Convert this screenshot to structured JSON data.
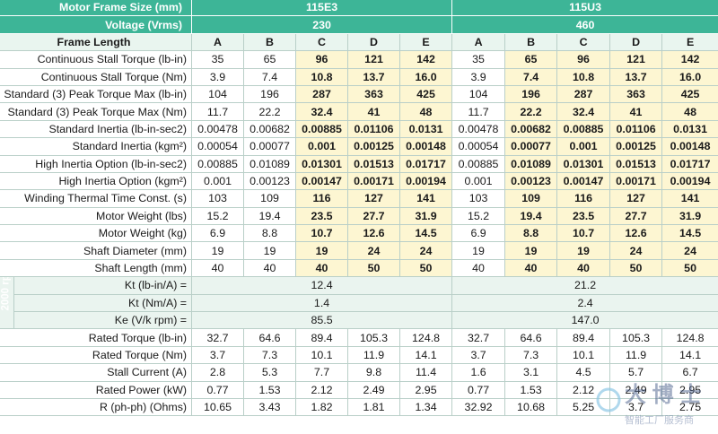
{
  "header": {
    "motor_frame_size_label": "Motor Frame Size (mm)",
    "frame_115E3": "115E3",
    "frame_115U3": "115U3",
    "voltage_label": "Voltage (Vrms)",
    "voltage_115E3": "230",
    "voltage_115U3": "460"
  },
  "frame_length": {
    "label": "Frame Length",
    "cols": [
      "A",
      "B",
      "C",
      "D",
      "E",
      "A",
      "B",
      "C",
      "D",
      "E"
    ]
  },
  "rows": [
    {
      "label": "Continuous Stall Torque (lb-in)",
      "values": [
        "35",
        "65",
        "96",
        "121",
        "142",
        "35",
        "65",
        "96",
        "121",
        "142"
      ]
    },
    {
      "label": "Continuous Stall Torque (Nm)",
      "values": [
        "3.9",
        "7.4",
        "10.8",
        "13.7",
        "16.0",
        "3.9",
        "7.4",
        "10.8",
        "13.7",
        "16.0"
      ]
    },
    {
      "label": "Standard (3) Peak Torque Max (lb-in)",
      "values": [
        "104",
        "196",
        "287",
        "363",
        "425",
        "104",
        "196",
        "287",
        "363",
        "425"
      ]
    },
    {
      "label": "Standard (3) Peak Torque Max (Nm)",
      "values": [
        "11.7",
        "22.2",
        "32.4",
        "41",
        "48",
        "11.7",
        "22.2",
        "32.4",
        "41",
        "48"
      ]
    },
    {
      "label": "Standard Inertia (lb-in-sec2)",
      "values": [
        "0.00478",
        "0.00682",
        "0.00885",
        "0.01106",
        "0.0131",
        "0.00478",
        "0.00682",
        "0.00885",
        "0.01106",
        "0.0131"
      ]
    },
    {
      "label": "Standard Inertia (kgm²)",
      "values": [
        "0.00054",
        "0.00077",
        "0.001",
        "0.00125",
        "0.00148",
        "0.00054",
        "0.00077",
        "0.001",
        "0.00125",
        "0.00148"
      ]
    },
    {
      "label": "High Inertia Option (lb-in-sec2)",
      "values": [
        "0.00885",
        "0.01089",
        "0.01301",
        "0.01513",
        "0.01717",
        "0.00885",
        "0.01089",
        "0.01301",
        "0.01513",
        "0.01717"
      ]
    },
    {
      "label": "High Inertia Option (kgm²)",
      "values": [
        "0.001",
        "0.00123",
        "0.00147",
        "0.00171",
        "0.00194",
        "0.001",
        "0.00123",
        "0.00147",
        "0.00171",
        "0.00194"
      ]
    },
    {
      "label": "Winding Thermal Time Const. (s)",
      "values": [
        "103",
        "109",
        "116",
        "127",
        "141",
        "103",
        "109",
        "116",
        "127",
        "141"
      ]
    },
    {
      "label": "Motor Weight (lbs)",
      "values": [
        "15.2",
        "19.4",
        "23.5",
        "27.7",
        "31.9",
        "15.2",
        "19.4",
        "23.5",
        "27.7",
        "31.9"
      ]
    },
    {
      "label": "Motor Weight (kg)",
      "values": [
        "6.9",
        "8.8",
        "10.7",
        "12.6",
        "14.5",
        "6.9",
        "8.8",
        "10.7",
        "12.6",
        "14.5"
      ]
    },
    {
      "label": "Shaft Diameter (mm)",
      "values": [
        "19",
        "19",
        "19",
        "24",
        "24",
        "19",
        "19",
        "19",
        "24",
        "24"
      ]
    },
    {
      "label": "Shaft Length (mm)",
      "values": [
        "40",
        "40",
        "40",
        "50",
        "50",
        "40",
        "40",
        "40",
        "50",
        "50"
      ]
    }
  ],
  "rpm_section": {
    "tag": "2000 rpm",
    "rows": [
      {
        "label": "Kt (lb-in/A) =",
        "v115E3": "12.4",
        "v115U3": "21.2"
      },
      {
        "label": "Kt (Nm/A) =",
        "v115E3": "1.4",
        "v115U3": "2.4"
      },
      {
        "label": "Ke (V/k rpm) =",
        "v115E3": "85.5",
        "v115U3": "147.0"
      }
    ]
  },
  "rated_rows": [
    {
      "label": "Rated Torque (lb-in)",
      "values": [
        "32.7",
        "64.6",
        "89.4",
        "105.3",
        "124.8",
        "32.7",
        "64.6",
        "89.4",
        "105.3",
        "124.8"
      ]
    },
    {
      "label": "Rated Torque (Nm)",
      "values": [
        "3.7",
        "7.3",
        "10.1",
        "11.9",
        "14.1",
        "3.7",
        "7.3",
        "10.1",
        "11.9",
        "14.1"
      ]
    },
    {
      "label": "Stall Current (A)",
      "values": [
        "2.8",
        "5.3",
        "7.7",
        "9.8",
        "11.4",
        "1.6",
        "3.1",
        "4.5",
        "5.7",
        "6.7"
      ]
    },
    {
      "label": "Rated Power (kW)",
      "values": [
        "0.77",
        "1.53",
        "2.12",
        "2.49",
        "2.95",
        "0.77",
        "1.53",
        "2.12",
        "2.49",
        "2.95"
      ]
    },
    {
      "label": "R (ph-ph) (Ohms)",
      "values": [
        "10.65",
        "3.43",
        "1.82",
        "1.81",
        "1.34",
        "32.92",
        "10.68",
        "5.25",
        "3.7",
        "2.75"
      ]
    }
  ],
  "highlight_cols_115E3": [
    2,
    3,
    4
  ],
  "highlight_cols_115U3": [
    6,
    7,
    8,
    9
  ],
  "colors": {
    "header_green": "#3db597",
    "highlight_yellow": "#fdf6d2",
    "section_green": "#eaf4ef"
  },
  "watermark": {
    "text1": "大 博 士",
    "text2": "智能工厂服务商"
  }
}
